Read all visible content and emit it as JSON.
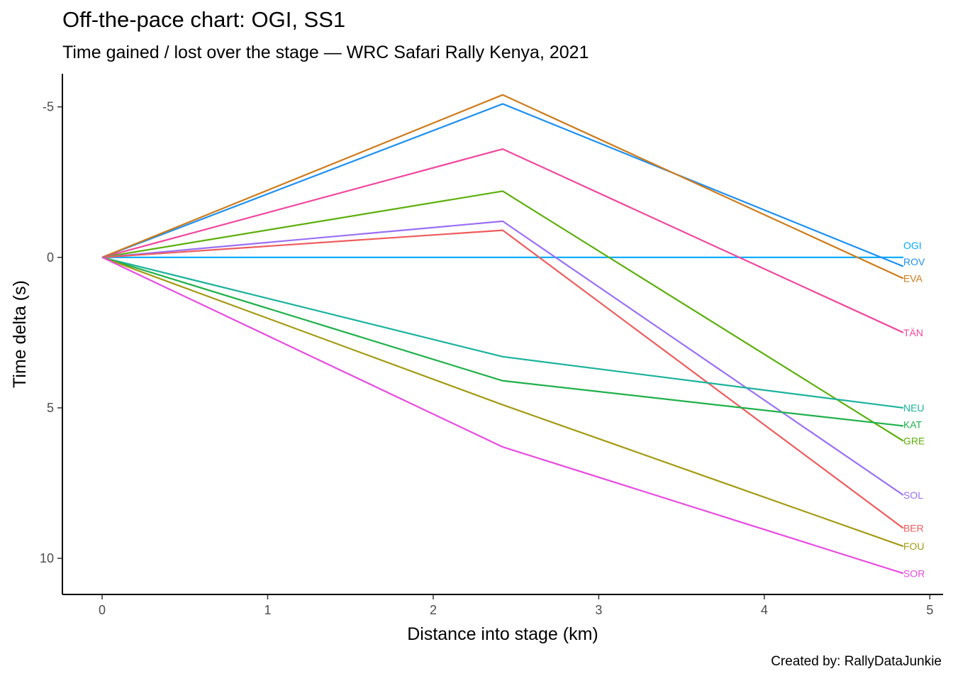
{
  "chart_data": {
    "type": "line",
    "title": "Off-the-pace chart: OGI, SS1",
    "subtitle": "Time gained / lost over the stage — WRC Safari Rally Kenya, 2021",
    "caption": "Created by: RallyDataJunkie",
    "xlabel": "Distance into stage (km)",
    "ylabel": "Time delta (s)",
    "xlim": [
      -0.24,
      5.08
    ],
    "ylim": [
      11.2,
      -6.1
    ],
    "y_reversed": true,
    "x_ticks": [
      0,
      1,
      2,
      3,
      4,
      5
    ],
    "y_ticks": [
      -5,
      0,
      5,
      10
    ],
    "x_tick_labels": [
      "0",
      "1",
      "2",
      "3",
      "4",
      "5"
    ],
    "y_tick_labels": [
      "-5",
      "0",
      "5",
      "10"
    ],
    "grid": false,
    "legend": "none",
    "series": [
      {
        "name": "OGI",
        "color": "#00A9FF",
        "x": [
          0,
          2.42,
          4.84
        ],
        "y": [
          0,
          0,
          0
        ],
        "label_y": -0.4
      },
      {
        "name": "ROV",
        "color": "#1E90F0",
        "x": [
          0,
          2.42,
          4.84
        ],
        "y": [
          0,
          -5.1,
          0.3
        ],
        "label_y": 0.15
      },
      {
        "name": "EVA",
        "color": "#CD7B1A",
        "x": [
          0,
          2.42,
          4.84
        ],
        "y": [
          0,
          -5.4,
          0.7
        ],
        "label_y": 0.7
      },
      {
        "name": "TÄN",
        "color": "#F0479E",
        "x": [
          0,
          2.42,
          4.84
        ],
        "y": [
          0,
          -3.6,
          2.5
        ],
        "label_y": 2.5
      },
      {
        "name": "GRE",
        "color": "#5BAF0A",
        "x": [
          0,
          2.42,
          4.84
        ],
        "y": [
          0,
          -2.2,
          6.1
        ],
        "label_y": 6.1
      },
      {
        "name": "SOL",
        "color": "#9A6FF5",
        "x": [
          0,
          2.42,
          4.84
        ],
        "y": [
          0,
          -1.2,
          7.9
        ],
        "label_y": 7.9
      },
      {
        "name": "BER",
        "color": "#EE5C5C",
        "x": [
          0,
          2.42,
          4.84
        ],
        "y": [
          0,
          -0.9,
          9.0
        ],
        "label_y": 9.0
      },
      {
        "name": "NEU",
        "color": "#1BB29B",
        "x": [
          0,
          2.42,
          4.84
        ],
        "y": [
          0,
          3.3,
          5.0
        ],
        "label_y": 5.0
      },
      {
        "name": "KAT",
        "color": "#1FB04A",
        "x": [
          0,
          2.42,
          4.84
        ],
        "y": [
          0,
          4.1,
          5.6
        ],
        "label_y": 5.55
      },
      {
        "name": "FOU",
        "color": "#A39A12",
        "x": [
          0,
          2.42,
          4.84
        ],
        "y": [
          0,
          4.9,
          9.6
        ],
        "label_y": 9.6
      },
      {
        "name": "SOR",
        "color": "#E84BE0",
        "x": [
          0,
          2.42,
          4.84
        ],
        "y": [
          0,
          6.3,
          10.5
        ],
        "label_y": 10.5
      }
    ]
  }
}
